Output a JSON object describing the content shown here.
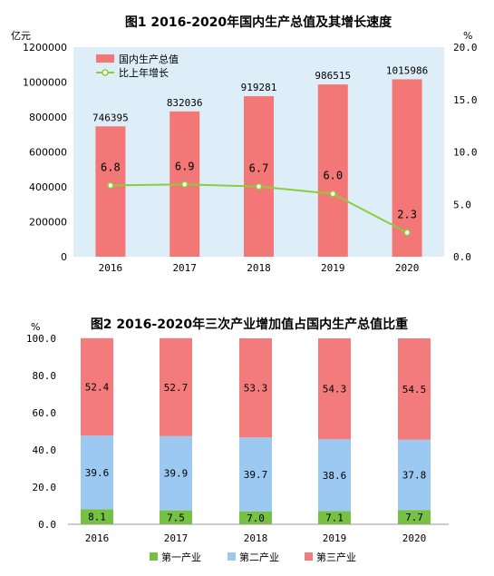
{
  "chart_data": [
    {
      "type": "bar+line",
      "title": "图1   2016-2020年国内生产总值及其增长速度",
      "y_unit_left": "亿元",
      "y_unit_right": "%",
      "categories": [
        "2016",
        "2017",
        "2018",
        "2019",
        "2020"
      ],
      "ylim_left": [
        0,
        1200000
      ],
      "yticks_left": [
        "0",
        "200000",
        "400000",
        "600000",
        "800000",
        "1000000",
        "1200000"
      ],
      "ylim_right": [
        0,
        20
      ],
      "yticks_right": [
        "0.0",
        "5.0",
        "10.0",
        "15.0",
        "20.0"
      ],
      "series": [
        {
          "name": "国内生产总值",
          "kind": "bar",
          "axis": "left",
          "color": "#f47777",
          "values": [
            746395,
            832036,
            919281,
            986515,
            1015986
          ],
          "labels": [
            "746395",
            "832036",
            "919281",
            "986515",
            "1015986"
          ]
        },
        {
          "name": "比上年增长",
          "kind": "line",
          "axis": "right",
          "color": "#8ccd3c",
          "values": [
            6.8,
            6.9,
            6.7,
            6.0,
            2.3
          ],
          "labels": [
            "6.8",
            "6.9",
            "6.7",
            "6.0",
            "2.3"
          ]
        }
      ],
      "legend_position": "top-left",
      "plot_background": "#ddeef8",
      "grid": false
    },
    {
      "type": "stacked-bar",
      "title": "图2   2016-2020年三次产业增加值占国内生产总值比重",
      "y_unit": "%",
      "categories": [
        "2016",
        "2017",
        "2018",
        "2019",
        "2020"
      ],
      "ylim": [
        0,
        100
      ],
      "yticks": [
        "0.0",
        "20.0",
        "40.0",
        "60.0",
        "80.0",
        "100.0"
      ],
      "series": [
        {
          "name": "第一产业",
          "color": "#77c142",
          "values": [
            8.1,
            7.5,
            7.0,
            7.1,
            7.7
          ],
          "labels": [
            "8.1",
            "7.5",
            "7.0",
            "7.1",
            "7.7"
          ]
        },
        {
          "name": "第二产业",
          "color": "#9cc9f2",
          "values": [
            39.6,
            39.9,
            39.7,
            38.6,
            37.8
          ],
          "labels": [
            "39.6",
            "39.9",
            "39.7",
            "38.6",
            "37.8"
          ]
        },
        {
          "name": "第三产业",
          "color": "#f37b7b",
          "values": [
            52.4,
            52.7,
            53.3,
            54.3,
            54.5
          ],
          "labels": [
            "52.4",
            "52.7",
            "53.3",
            "54.3",
            "54.5"
          ]
        }
      ],
      "legend_position": "bottom",
      "grid": false
    }
  ]
}
